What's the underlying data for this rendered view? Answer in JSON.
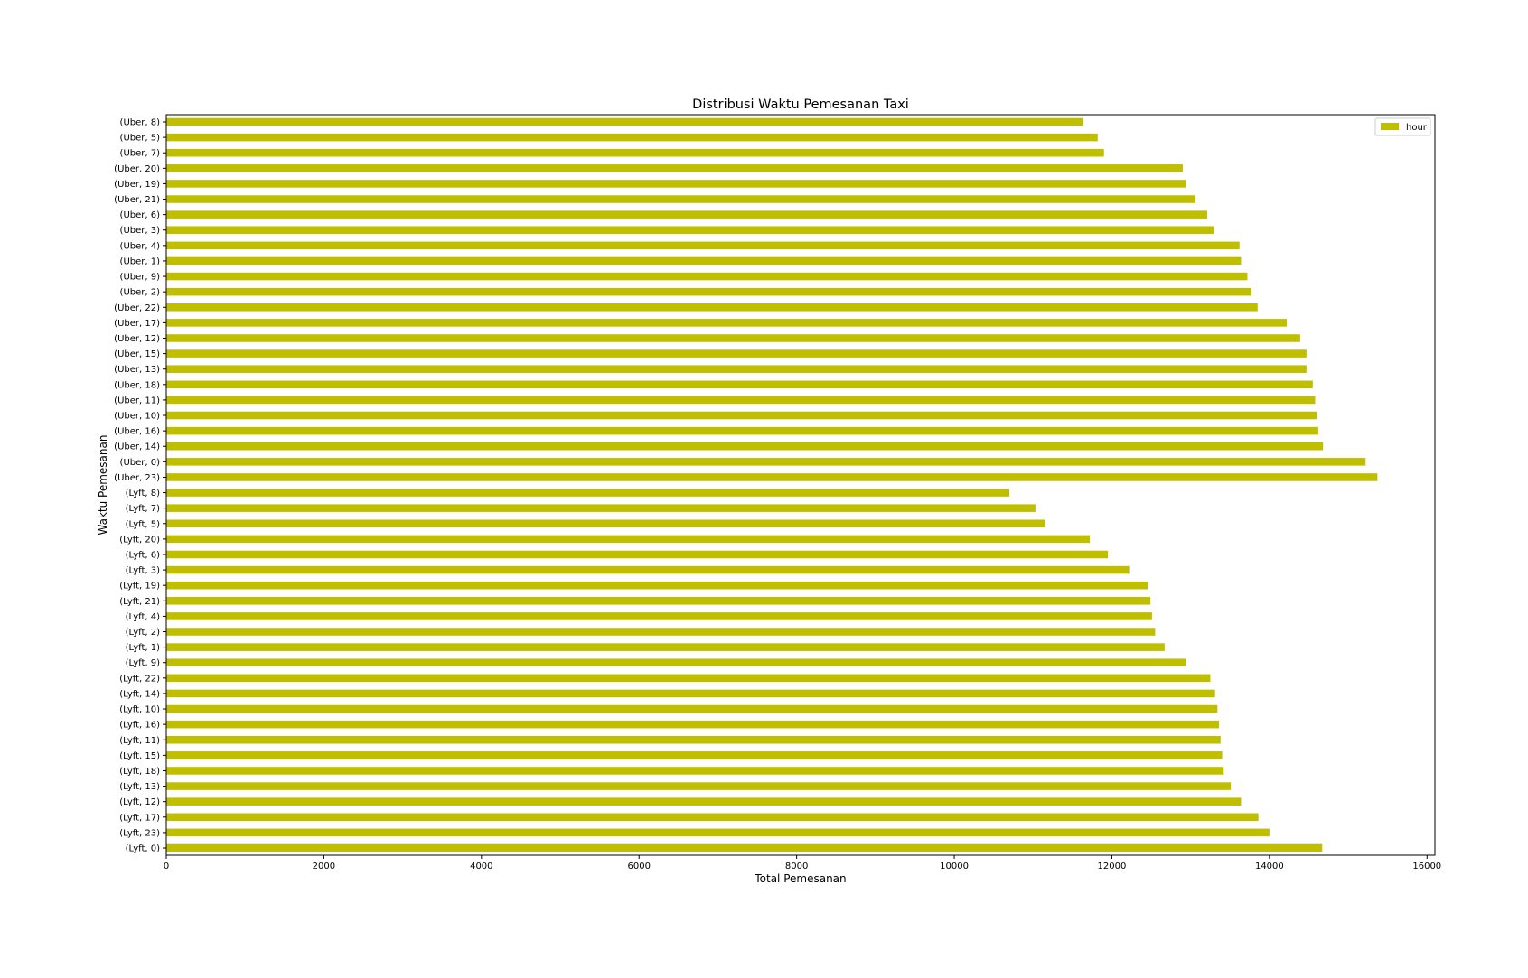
{
  "chart_data": {
    "type": "bar",
    "orientation": "horizontal",
    "title": "Distribusi Waktu Pemesanan Taxi",
    "xlabel": "Total Pemesanan",
    "ylabel": "Waktu Pemesanan",
    "xlim": [
      0,
      16100
    ],
    "x_ticks": [
      0,
      2000,
      4000,
      6000,
      8000,
      10000,
      12000,
      14000,
      16000
    ],
    "grid": false,
    "legend_position": "top-right",
    "bar_color": "#bfbf00",
    "categories": [
      "(Uber, 8)",
      "(Uber, 5)",
      "(Uber, 7)",
      "(Uber, 20)",
      "(Uber, 19)",
      "(Uber, 21)",
      "(Uber, 6)",
      "(Uber, 3)",
      "(Uber, 4)",
      "(Uber, 1)",
      "(Uber, 9)",
      "(Uber, 2)",
      "(Uber, 22)",
      "(Uber, 17)",
      "(Uber, 12)",
      "(Uber, 15)",
      "(Uber, 13)",
      "(Uber, 18)",
      "(Uber, 11)",
      "(Uber, 10)",
      "(Uber, 16)",
      "(Uber, 14)",
      "(Uber, 0)",
      "(Uber, 23)",
      "(Lyft, 8)",
      "(Lyft, 7)",
      "(Lyft, 5)",
      "(Lyft, 20)",
      "(Lyft, 6)",
      "(Lyft, 3)",
      "(Lyft, 19)",
      "(Lyft, 21)",
      "(Lyft, 4)",
      "(Lyft, 2)",
      "(Lyft, 1)",
      "(Lyft, 9)",
      "(Lyft, 22)",
      "(Lyft, 14)",
      "(Lyft, 10)",
      "(Lyft, 16)",
      "(Lyft, 11)",
      "(Lyft, 15)",
      "(Lyft, 18)",
      "(Lyft, 13)",
      "(Lyft, 12)",
      "(Lyft, 17)",
      "(Lyft, 23)",
      "(Lyft, 0)"
    ],
    "series": [
      {
        "name": "hour",
        "values": [
          11630,
          11820,
          11900,
          12900,
          12940,
          13060,
          13210,
          13300,
          13620,
          13640,
          13720,
          13770,
          13850,
          14220,
          14390,
          14470,
          14470,
          14550,
          14580,
          14600,
          14620,
          14680,
          15220,
          15370,
          10700,
          11030,
          11150,
          11720,
          11950,
          12220,
          12460,
          12490,
          12510,
          12550,
          12670,
          12940,
          13250,
          13310,
          13340,
          13360,
          13380,
          13400,
          13420,
          13510,
          13640,
          13860,
          14000,
          14670
        ]
      }
    ]
  }
}
